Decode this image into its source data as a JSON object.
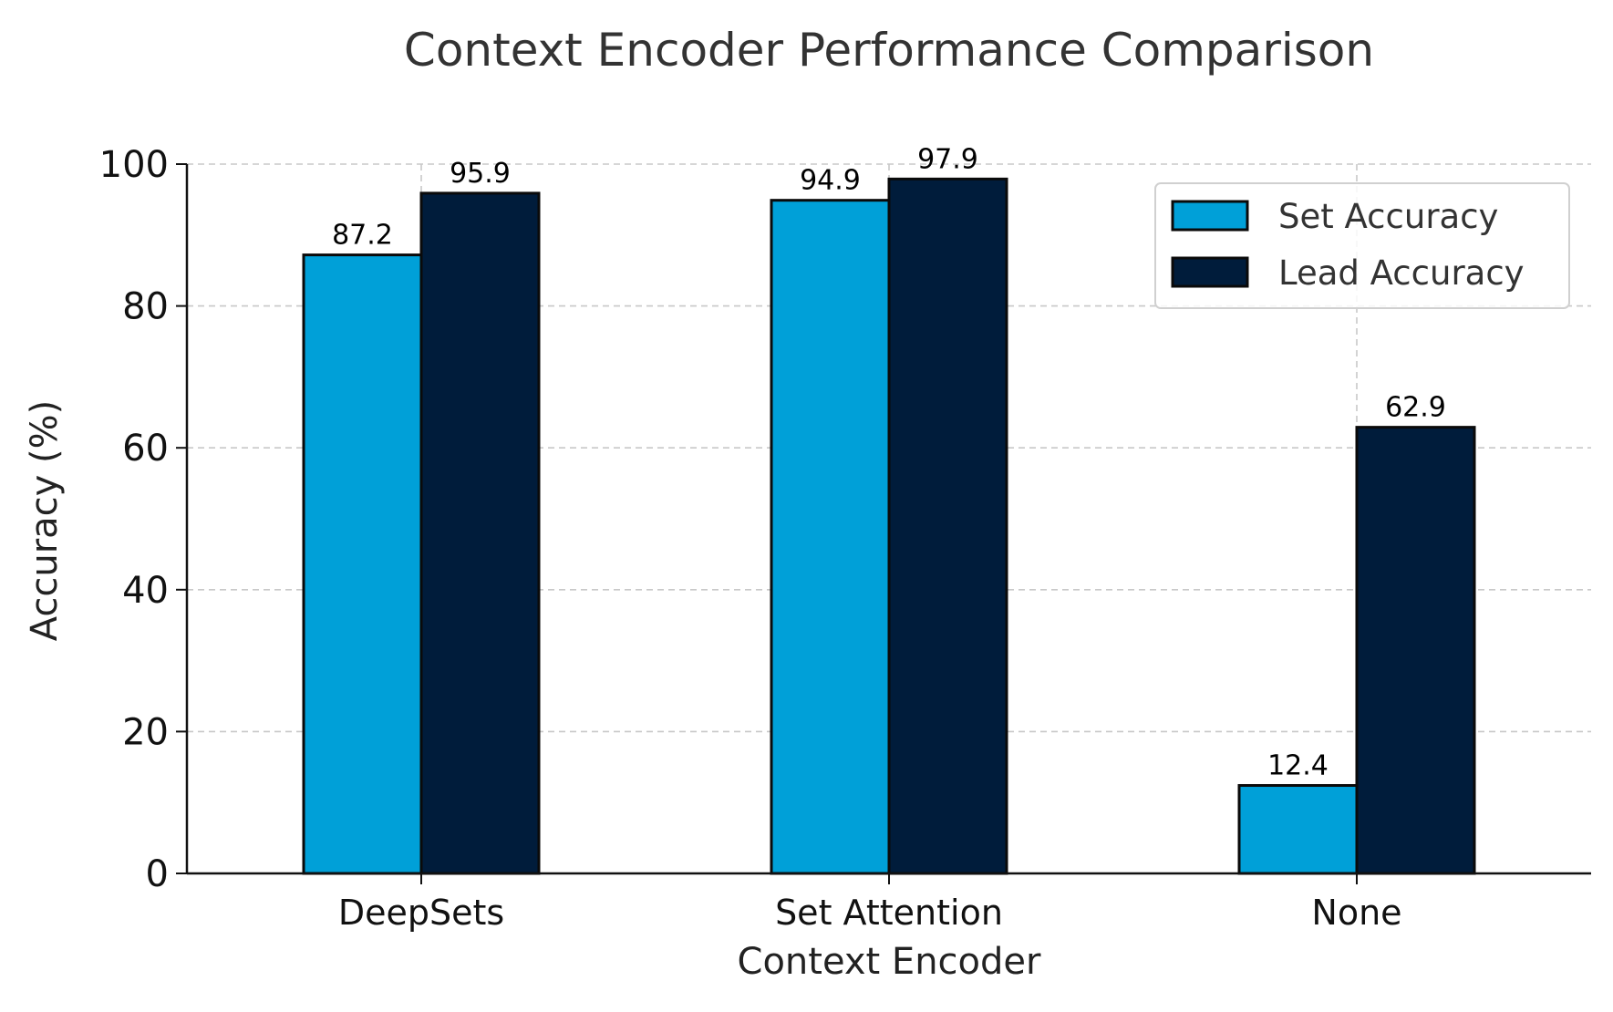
{
  "chart_data": {
    "type": "bar",
    "title": "Context Encoder Performance Comparison",
    "xlabel": "Context Encoder",
    "ylabel": "Accuracy (%)",
    "categories": [
      "DeepSets",
      "Set Attention",
      "None"
    ],
    "series": [
      {
        "name": "Set Accuracy",
        "values": [
          87.2,
          94.9,
          12.4
        ],
        "color": "#00a0d8"
      },
      {
        "name": "Lead Accuracy",
        "values": [
          95.9,
          97.9,
          62.9
        ],
        "color": "#001c3b"
      }
    ],
    "ylim": [
      0,
      100
    ],
    "yticks": [
      0,
      20,
      40,
      60,
      80,
      100
    ],
    "grid": true,
    "legend_position": "top-right"
  }
}
